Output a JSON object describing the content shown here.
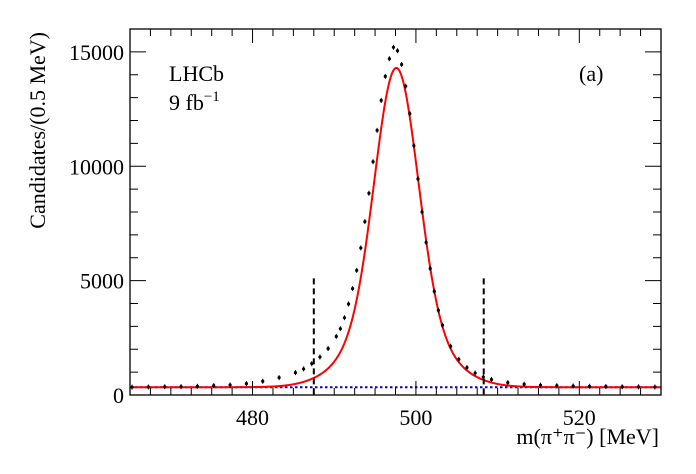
{
  "chart_data": {
    "type": "scatter",
    "title": "",
    "xlabel": "m(π⁺π⁻) [MeV]",
    "ylabel": "Candidates/(0.5 MeV)",
    "xlim": [
      465,
      530
    ],
    "ylim": [
      0,
      16000
    ],
    "x_ticks": [
      480,
      500,
      520
    ],
    "x_tick_labels": [
      "480",
      "500",
      "520"
    ],
    "y_ticks": [
      0,
      5000,
      10000,
      15000
    ],
    "y_tick_labels": [
      "0",
      "5000",
      "10000",
      "15000"
    ],
    "annotations": {
      "experiment": "LHCb",
      "luminosity": "9 fb",
      "luminosity_exp": "−1",
      "panel": "(a)"
    },
    "signal_window": [
      487.5,
      508.3
    ],
    "signal_window_height": 5100,
    "background_level": 340,
    "fit_model": {
      "mean": 497.6,
      "peak": 14300,
      "core_sigma": 2.6,
      "tail_sigma": 5.0,
      "tail_fraction": 0.22
    },
    "series": [
      {
        "name": "Data",
        "x": [
          465.25,
          467.25,
          469.25,
          471.25,
          473.25,
          475.25,
          477.25,
          479.25,
          481.25,
          483.25,
          485.25,
          486.25,
          487.25,
          488.25,
          489.25,
          490.25,
          490.75,
          491.25,
          491.75,
          492.25,
          492.75,
          493.25,
          493.75,
          494.25,
          494.75,
          495.25,
          495.75,
          496.25,
          496.75,
          497.25,
          497.75,
          498.25,
          498.75,
          499.25,
          499.75,
          500.25,
          500.75,
          501.25,
          501.75,
          502.25,
          502.75,
          503.25,
          504.25,
          505.25,
          506.25,
          507.25,
          508.25,
          509.25,
          511.25,
          513.25,
          515.25,
          517.25,
          519.25,
          521.25,
          523.25,
          525.25,
          527.25,
          529.25
        ],
        "y": [
          345,
          350,
          362,
          365,
          380,
          410,
          440,
          500,
          600,
          760,
          980,
          1140,
          1370,
          1660,
          2030,
          2560,
          2900,
          3380,
          3980,
          4650,
          5450,
          6430,
          7580,
          8820,
          10200,
          11570,
          12880,
          13930,
          14700,
          15200,
          15050,
          14450,
          13500,
          12300,
          10900,
          9450,
          8000,
          6670,
          5530,
          4530,
          3700,
          3050,
          2130,
          1560,
          1200,
          960,
          790,
          680,
          540,
          470,
          430,
          410,
          395,
          380,
          370,
          360,
          355,
          350
        ]
      }
    ]
  },
  "colors": {
    "data": "#000000",
    "fit": "#ff0000",
    "background": "#0000cc",
    "window": "#000000"
  }
}
